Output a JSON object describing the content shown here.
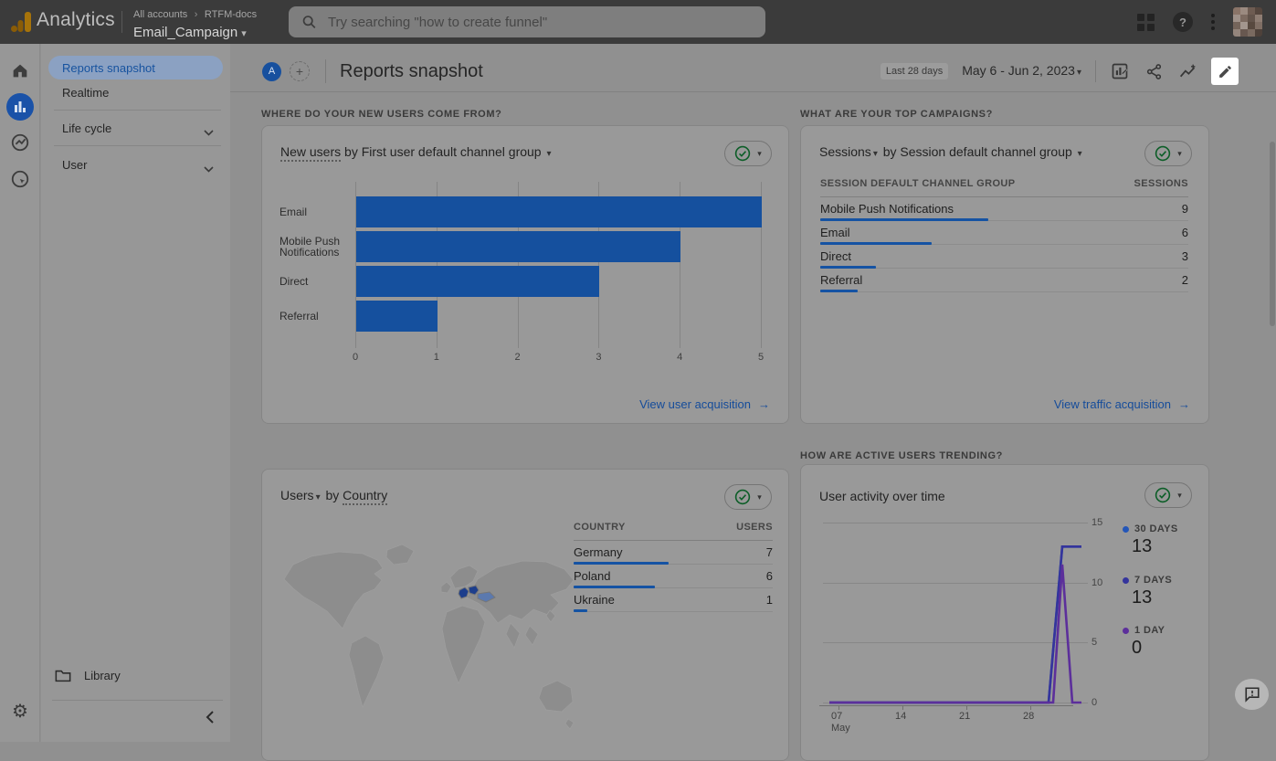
{
  "header": {
    "product": "Analytics",
    "breadcrumb": {
      "account": "All accounts",
      "separator": "›",
      "org": "RTFM-docs",
      "property": "Email_Campaign"
    },
    "search_placeholder": "Try searching \"how to create funnel\"",
    "icons": [
      "analytics-logo",
      "search-icon",
      "apps-grid-icon",
      "help-icon",
      "more-vert-icon",
      "avatar-image"
    ]
  },
  "sidebar": {
    "rail_icons": [
      "home-icon",
      "reports-icon",
      "explore-icon",
      "advertising-icon",
      "settings-gear-icon"
    ],
    "items": [
      {
        "label": "Reports snapshot",
        "selected": true
      },
      {
        "label": "Realtime",
        "selected": false
      },
      {
        "label": "Life cycle",
        "expandable": true
      },
      {
        "label": "User",
        "expandable": true
      }
    ],
    "library_label": "Library",
    "collapse_icon": "chevron-left-icon"
  },
  "content_header": {
    "avatar_letter": "A",
    "plus_label": "+",
    "title": "Reports snapshot",
    "date_range_label": "Last 28 days",
    "date_range": "May 6 - Jun 2, 2023",
    "toolbar_icons": [
      "customize-chart-icon",
      "share-icon",
      "insights-icon",
      "edit-pencil-icon"
    ]
  },
  "cards": {
    "new_users": {
      "section_label": "WHERE DO YOUR NEW USERS COME FROM?",
      "title_metric": "New users",
      "title_rest": "by First user default channel group",
      "link": "View user acquisition",
      "arrow": "→"
    },
    "sessions": {
      "section_label": "WHAT ARE YOUR TOP CAMPAIGNS?",
      "title_metric": "Sessions",
      "title_rest": "by Session default channel group",
      "col1": "SESSION DEFAULT CHANNEL GROUP",
      "col2": "SESSIONS",
      "link": "View traffic acquisition",
      "arrow": "→"
    },
    "countries": {
      "title_metric": "Users",
      "title_rest": "by Country",
      "col1": "COUNTRY",
      "col2": "USERS"
    },
    "activity": {
      "section_label": "HOW ARE ACTIVE USERS TRENDING?",
      "title": "User activity over time",
      "x_month": "May"
    }
  },
  "chart_data": [
    {
      "type": "bar",
      "orientation": "horizontal",
      "title": "New users by First user default channel group",
      "categories": [
        "Email",
        "Mobile Push Notifications",
        "Direct",
        "Referral"
      ],
      "values": [
        5,
        4,
        3,
        1
      ],
      "xlabel": "",
      "ylabel": "",
      "xlim": [
        0,
        5
      ],
      "xticks": [
        "0",
        "1",
        "2",
        "3",
        "4",
        "5"
      ],
      "grid": true,
      "bar_color": "#15509e"
    },
    {
      "type": "table",
      "title": "Sessions by Session default channel group",
      "columns": [
        "Session default channel group",
        "Sessions"
      ],
      "rows": [
        [
          "Mobile Push Notifications",
          9
        ],
        [
          "Email",
          6
        ],
        [
          "Direct",
          3
        ],
        [
          "Referral",
          2
        ]
      ],
      "max_value": 9
    },
    {
      "type": "table",
      "title": "Users by Country",
      "columns": [
        "Country",
        "Users"
      ],
      "rows": [
        [
          "Germany",
          7
        ],
        [
          "Poland",
          6
        ],
        [
          "Ukraine",
          1
        ]
      ],
      "max_value": 7,
      "map_highlight_dark": [
        "Germany",
        "Poland"
      ],
      "map_highlight_light": [
        "Ukraine"
      ]
    },
    {
      "type": "line",
      "title": "User activity over time",
      "xticks": [
        "07",
        "14",
        "21",
        "28"
      ],
      "xlabel": "May",
      "ylim": [
        0,
        15
      ],
      "yticks": [
        "15",
        "10",
        "5",
        "0"
      ],
      "legend_position": "right",
      "legend": [
        {
          "label": "30 DAYS",
          "value": "13",
          "color": "#2456b8"
        },
        {
          "label": "7 DAYS",
          "value": "13",
          "color": "#34349c"
        },
        {
          "label": "1 DAY",
          "value": "0",
          "color": "#5c2f9b"
        }
      ],
      "xmax_days": 28.5,
      "series": [
        {
          "name": "30 DAYS",
          "color": "#2f57b0",
          "points_day_value": [
            [
              0,
              0
            ],
            [
              24,
              0
            ],
            [
              25.5,
              13
            ],
            [
              27.6,
              13
            ]
          ]
        },
        {
          "name": "7 DAYS",
          "color": "#34349c",
          "points_day_value": [
            [
              0,
              0
            ],
            [
              24,
              0
            ],
            [
              25.5,
              13
            ],
            [
              27.6,
              13
            ]
          ]
        },
        {
          "name": "1 DAY",
          "color": "#5c2f9b",
          "points_day_value": [
            [
              0,
              0
            ],
            [
              24.5,
              0
            ],
            [
              25.5,
              11.5
            ],
            [
              26.6,
              0
            ],
            [
              27.6,
              0
            ]
          ]
        }
      ]
    }
  ],
  "colors": {
    "appbar_bg": "#3b3b3b",
    "page_bg": "#909090",
    "card_bg": "#999999",
    "bar_blue": "#15509e",
    "table_bar_blue": "#1553a3",
    "link_blue": "#154c9a",
    "selected_pill_bg": "#8ba1c2",
    "selected_pill_text": "#17539f",
    "rail_active_bg": "#1a52a8",
    "green_check": "#0d5e28",
    "map_land": "#8d8d8d",
    "map_country_dark": "#1d3e8c",
    "map_country_light": "#5b79ae",
    "spotlight_bg": "#ffffff",
    "avatar_pixels": [
      "#8a7468",
      "#9b8a80",
      "#6e5c52",
      "#55463e",
      "#9f9189",
      "#7c6a60",
      "#63544b",
      "#8e7d73",
      "#75655b",
      "#a3968e",
      "#58493f",
      "#7f6e64",
      "#94857c",
      "#685850",
      "#887identifier",
      "#4e413a"
    ]
  },
  "misc": {
    "feedback_icon": "feedback-bubble-icon",
    "scrollbar_visible": true
  }
}
